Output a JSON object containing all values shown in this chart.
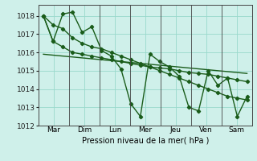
{
  "xlabel": "Pression niveau de la mer( hPa )",
  "background_color": "#cff0ea",
  "grid_color": "#99d9cc",
  "line_color": "#1a5c1a",
  "ylim": [
    1012,
    1018.6
  ],
  "days": [
    "Mar",
    "Dim",
    "Lun",
    "Mer",
    "Jeu",
    "Ven",
    "Sam"
  ],
  "num_points": 22,
  "yticks": [
    1012,
    1013,
    1014,
    1015,
    1016,
    1017,
    1018
  ],
  "s1_y": [
    1018.0,
    1016.6,
    1018.1,
    1018.2,
    1017.1,
    1017.4,
    1016.1,
    1015.8,
    1015.1,
    1013.2,
    1012.5,
    1015.9,
    1015.5,
    1015.2,
    1014.7,
    1013.0,
    1012.8,
    1015.0,
    1014.2,
    1014.6,
    1012.5,
    1013.6
  ],
  "s2_y": [
    1018.0,
    1017.5,
    1017.3,
    1016.8,
    1016.5,
    1016.3,
    1016.2,
    1016.0,
    1015.8,
    1015.6,
    1015.4,
    1015.2,
    1015.0,
    1014.8,
    1014.6,
    1014.4,
    1014.2,
    1014.0,
    1013.8,
    1013.6,
    1013.5,
    1013.4
  ],
  "s3_y": [
    1015.9,
    1015.85,
    1015.8,
    1015.75,
    1015.7,
    1015.65,
    1015.6,
    1015.55,
    1015.5,
    1015.45,
    1015.4,
    1015.35,
    1015.3,
    1015.25,
    1015.2,
    1015.15,
    1015.1,
    1015.05,
    1015.0,
    1014.95,
    1014.9,
    1014.85
  ],
  "s4_y": [
    1018.0,
    1016.6,
    1016.3,
    1016.0,
    1015.9,
    1015.8,
    1015.7,
    1015.6,
    1015.5,
    1015.4,
    1015.3,
    1015.2,
    1015.15,
    1015.1,
    1015.0,
    1014.9,
    1014.85,
    1014.8,
    1014.7,
    1014.6,
    1014.5,
    1014.4
  ]
}
